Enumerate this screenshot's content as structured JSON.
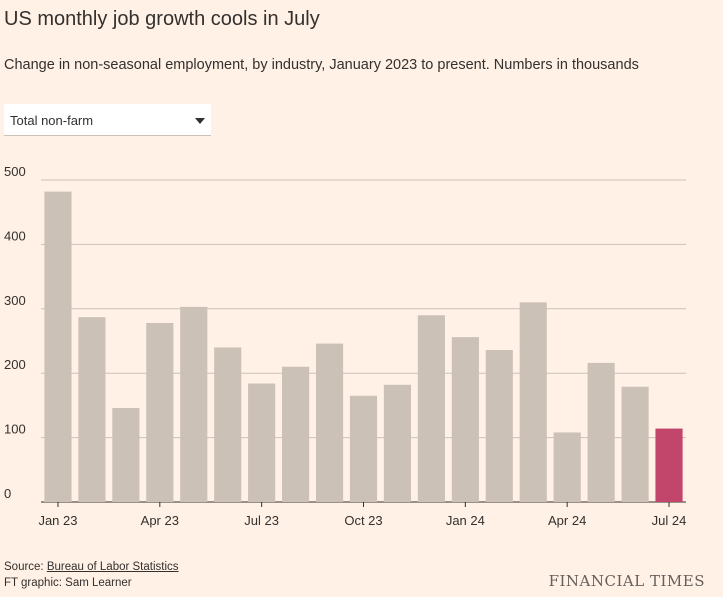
{
  "header": {
    "title": "US monthly job growth cools in July",
    "subtitle": "Change in non-seasonal employment, by industry, January 2023 to present. Numbers in thousands"
  },
  "filter": {
    "selected": "Total non-farm"
  },
  "footer": {
    "source_label": "Source:",
    "source_link": "Bureau of Labor Statistics",
    "credit": "FT graphic: Sam Learner",
    "logo": "FINANCIAL TIMES"
  },
  "colors": {
    "bar": "#ccc1b7",
    "highlight": "#c2456b",
    "grid": "#ccc1b7",
    "background": "#fff1e5"
  },
  "chart_data": {
    "type": "bar",
    "title": "US monthly job growth cools in July",
    "ylabel": "Numbers in thousands",
    "ylim": [
      0,
      500
    ],
    "yticks": [
      0,
      100,
      200,
      300,
      400,
      500
    ],
    "categories": [
      "Jan 23",
      "Feb 23",
      "Mar 23",
      "Apr 23",
      "May 23",
      "Jun 23",
      "Jul 23",
      "Aug 23",
      "Sep 23",
      "Oct 23",
      "Nov 23",
      "Dec 23",
      "Jan 24",
      "Feb 24",
      "Mar 24",
      "Apr 24",
      "May 24",
      "Jun 24",
      "Jul 24"
    ],
    "xtick_labels": [
      "Jan 23",
      "Apr 23",
      "Jul 23",
      "Oct 23",
      "Jan 24",
      "Apr 24",
      "Jul 24"
    ],
    "values": [
      482,
      287,
      146,
      278,
      303,
      240,
      184,
      210,
      246,
      165,
      182,
      290,
      256,
      236,
      310,
      108,
      216,
      179,
      114
    ],
    "highlight_index": 18
  }
}
